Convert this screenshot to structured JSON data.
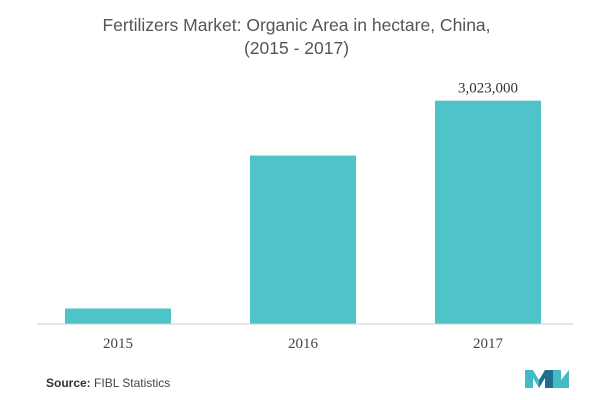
{
  "chart_data": {
    "type": "bar",
    "title": "Fertilizers Market: Organic Area in hectare, China,",
    "subtitle": "(2015 - 2017)",
    "categories": [
      "2015",
      "2016",
      "2017"
    ],
    "values": [
      210000,
      2280000,
      3023000
    ],
    "data_labels": [
      "",
      "",
      "3,023,000"
    ],
    "ylim": [
      0,
      3100000
    ],
    "grid": false,
    "legend": "none",
    "bar_color": "#4fc4c8",
    "axis_color": "#cccccc"
  },
  "source": {
    "label": "Source:",
    "text": "FIBL Statistics"
  },
  "logo": {
    "icon": "mordor-intelligence-logo",
    "colors": [
      "#1f6e8c",
      "#45b9c4"
    ]
  }
}
